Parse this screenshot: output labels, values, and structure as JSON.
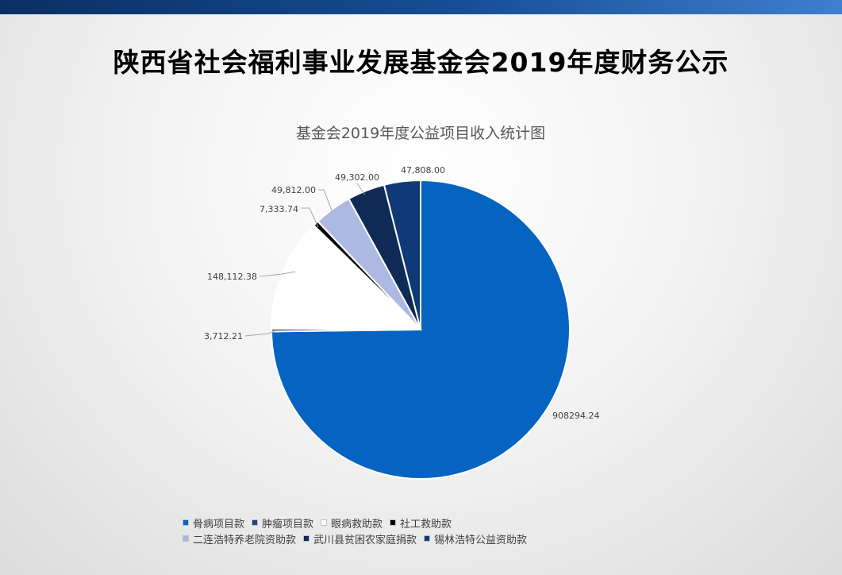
{
  "page": {
    "title": "陕西省社会福利事业发展基金会2019年度财务公示"
  },
  "chart_data": {
    "type": "pie",
    "title": "基金会2019年度公益项目收入统计图",
    "slices": [
      {
        "name": "骨病项目款",
        "value": 908294.24,
        "label": "908294.24",
        "color": "#0563c1"
      },
      {
        "name": "肿瘤项目款",
        "value": 3712.21,
        "label": "3,712.21",
        "color": "#264478"
      },
      {
        "name": "眼病救助款",
        "value": 148112.38,
        "label": "148,112.38",
        "color": "#ffffff"
      },
      {
        "name": "社工救助款",
        "value": 7333.74,
        "label": "7,333.74",
        "color": "#000000"
      },
      {
        "name": "二连浩特养老院资助款",
        "value": 49812.0,
        "label": "49,812.00",
        "color": "#adb9e3"
      },
      {
        "name": "武川县贫困农家庭捐款",
        "value": 49302.0,
        "label": "49,302.00",
        "color": "#0e2a55"
      },
      {
        "name": "锡林浩特公益资助款",
        "value": 47808.0,
        "label": "47,808.00",
        "color": "#0f3a78"
      }
    ],
    "start_angle_deg": 0,
    "direction": "clockwise",
    "legend_position": "bottom"
  }
}
